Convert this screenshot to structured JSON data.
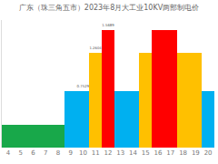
{
  "chart_data": {
    "type": "bar",
    "title": "广东（珠三角五市）2023年8月大工业10KV两部制电价",
    "categories": [
      "4",
      "5",
      "6",
      "7",
      "8",
      "9",
      "10",
      "11",
      "12",
      "13",
      "14",
      "15",
      "16",
      "17",
      "18",
      "19",
      "20"
    ],
    "values": [
      0.3,
      0.3,
      0.3,
      0.3,
      0.3,
      0.7529,
      0.7529,
      1.2604,
      1.5689,
      0.7529,
      0.7529,
      1.2604,
      1.5689,
      1.5689,
      1.2604,
      1.2604,
      0.7529
    ],
    "value_labels": [
      null,
      null,
      null,
      null,
      null,
      null,
      "0.7529",
      "1.2604",
      "1.5689",
      null,
      null,
      null,
      null,
      null,
      null,
      null,
      null
    ],
    "colors": [
      "#18a84a",
      "#18a84a",
      "#18a84a",
      "#18a84a",
      "#18a84a",
      "#00b0f0",
      "#00b0f0",
      "#ffc000",
      "#ff0000",
      "#00b0f0",
      "#00b0f0",
      "#ffc000",
      "#ff0000",
      "#ff0000",
      "#ffc000",
      "#ffc000",
      "#00b0f0"
    ],
    "data_labels": true,
    "ylim": [
      0,
      1.7
    ],
    "yticks": [],
    "grid": false,
    "tick_labels": "x"
  }
}
